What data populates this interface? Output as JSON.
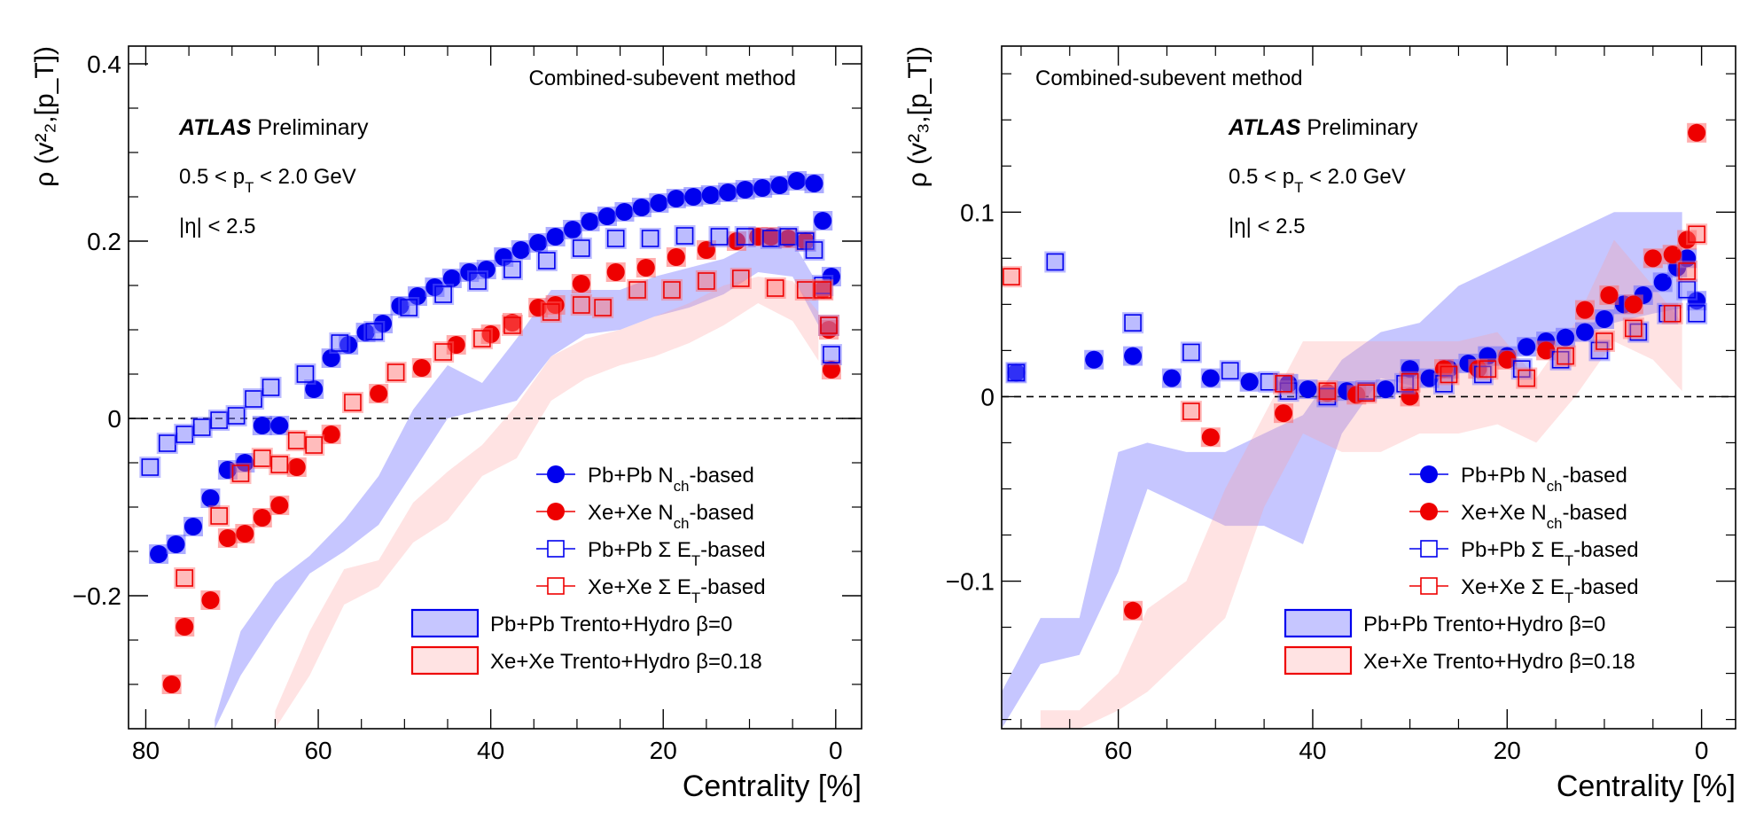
{
  "chart_data": [
    {
      "type": "scatter",
      "id": "v2",
      "ylabel": "ρ (v²₂,[p_T])",
      "xlabel": "Centrality [%]",
      "xlim": [
        82,
        -3
      ],
      "ylim": [
        -0.35,
        0.42
      ],
      "xticks": [
        80,
        60,
        40,
        20,
        0
      ],
      "yticks": [
        -0.2,
        0,
        0.2,
        0.4
      ],
      "ytick_labels": [
        "−0.2",
        "0",
        "0.2",
        "0.4"
      ],
      "zero_line": true,
      "annotations": {
        "method": "Combined-subevent method",
        "atlas": "ATLAS",
        "preliminary": "Preliminary",
        "pt_range": "0.5 < p",
        "pt_sub": "T",
        "pt_tail": " < 2.0 GeV",
        "eta": "|η| < 2.5"
      },
      "series": [
        {
          "name": "Pb+Pb N_ch-based",
          "label": "Pb+Pb N",
          "sub": "ch",
          "suffix": "-based",
          "marker": "filled-circle",
          "color": "#0000ee",
          "x": [
            78.5,
            76.5,
            74.5,
            72.5,
            70.5,
            68.5,
            66.5,
            64.5,
            60.5,
            58.5,
            56.5,
            54.5,
            52.5,
            50.5,
            48.5,
            46.5,
            44.5,
            42.5,
            40.5,
            38.5,
            36.5,
            34.5,
            32.5,
            30.5,
            28.5,
            26.5,
            24.5,
            22.5,
            20.5,
            18.5,
            16.5,
            14.5,
            12.5,
            10.5,
            8.5,
            6.5,
            4.5,
            2.5,
            1.5,
            0.5
          ],
          "y": [
            -0.153,
            -0.142,
            -0.122,
            -0.09,
            -0.058,
            -0.05,
            -0.008,
            -0.008,
            0.033,
            0.068,
            0.083,
            0.097,
            0.107,
            0.127,
            0.138,
            0.148,
            0.158,
            0.165,
            0.168,
            0.182,
            0.19,
            0.198,
            0.205,
            0.213,
            0.222,
            0.228,
            0.233,
            0.238,
            0.243,
            0.248,
            0.25,
            0.252,
            0.255,
            0.258,
            0.26,
            0.263,
            0.268,
            0.265,
            0.223,
            0.16
          ]
        },
        {
          "name": "Xe+Xe N_ch-based",
          "label": "Xe+Xe N",
          "sub": "ch",
          "suffix": "-based",
          "marker": "filled-circle",
          "color": "#ee0000",
          "x": [
            77,
            75.5,
            72.5,
            70.5,
            68.5,
            66.5,
            64.5,
            62.5,
            58.5,
            53,
            48,
            44,
            40,
            37.5,
            34.5,
            32.5,
            29.5,
            25.5,
            22,
            18.5,
            15,
            11.5,
            9,
            7.5,
            5.5,
            3.5,
            1.5,
            0.8,
            0.5
          ],
          "y": [
            -0.3,
            -0.235,
            -0.205,
            -0.135,
            -0.13,
            -0.112,
            -0.098,
            -0.055,
            -0.018,
            0.028,
            0.057,
            0.083,
            0.095,
            0.108,
            0.125,
            0.128,
            0.152,
            0.165,
            0.17,
            0.182,
            0.19,
            0.2,
            0.205,
            0.205,
            0.203,
            0.2,
            0.145,
            0.1,
            0.055
          ]
        },
        {
          "name": "Pb+Pb Σ E_T-based",
          "label": "Pb+Pb Σ E",
          "sub": "T",
          "suffix": "-based",
          "marker": "open-square",
          "color": "#0000ee",
          "x": [
            79.5,
            77.5,
            75.5,
            73.5,
            71.5,
            69.5,
            67.5,
            65.5,
            61.5,
            57.5,
            53.5,
            49.5,
            45.5,
            41.5,
            37.5,
            33.5,
            29.5,
            25.5,
            21.5,
            17.5,
            13.5,
            10.5,
            7.5,
            5.5,
            3.5,
            2.5,
            1.5,
            0.8,
            0.5
          ],
          "y": [
            -0.055,
            -0.028,
            -0.018,
            -0.01,
            -0.002,
            0.003,
            0.022,
            0.035,
            0.05,
            0.085,
            0.098,
            0.125,
            0.14,
            0.155,
            0.168,
            0.178,
            0.192,
            0.203,
            0.203,
            0.206,
            0.205,
            0.205,
            0.203,
            0.205,
            0.2,
            0.19,
            0.15,
            0.105,
            0.072
          ]
        },
        {
          "name": "Xe+Xe Σ E_T-based",
          "label": "Xe+Xe Σ E",
          "sub": "T",
          "suffix": "-based",
          "marker": "open-square",
          "color": "#ee0000",
          "x": [
            75.5,
            71.5,
            69,
            66.5,
            64.5,
            62.5,
            60.5,
            56,
            51,
            45.5,
            41,
            37.5,
            33,
            29.5,
            27,
            23,
            19,
            15,
            11,
            7,
            3.5,
            1.5,
            0.8
          ],
          "y": [
            -0.18,
            -0.11,
            -0.062,
            -0.045,
            -0.052,
            -0.025,
            -0.03,
            0.018,
            0.052,
            0.075,
            0.09,
            0.105,
            0.12,
            0.128,
            0.125,
            0.145,
            0.145,
            0.155,
            0.158,
            0.147,
            0.145,
            0.145,
            0.105
          ]
        }
      ],
      "bands": [
        {
          "name": "Pb+Pb Trento+Hydro β=0",
          "color": "#3333ff",
          "x": [
            72,
            69,
            65,
            61,
            57,
            53,
            49,
            45,
            41,
            37,
            33,
            29,
            25,
            21,
            17,
            13,
            9,
            5,
            2
          ],
          "low": [
            -0.35,
            -0.29,
            -0.23,
            -0.175,
            -0.15,
            -0.12,
            -0.06,
            0.0,
            0.01,
            0.02,
            0.07,
            0.095,
            0.1,
            0.115,
            0.125,
            0.14,
            0.165,
            0.16,
            0.105
          ],
          "high": [
            -0.34,
            -0.24,
            -0.185,
            -0.155,
            -0.115,
            -0.065,
            0.01,
            0.06,
            0.04,
            0.09,
            0.145,
            0.145,
            0.145,
            0.16,
            0.17,
            0.18,
            0.2,
            0.2,
            0.15
          ]
        },
        {
          "name": "Xe+Xe Trento+Hydro β=0.18",
          "color": "#ff9999",
          "x": [
            65,
            61,
            57,
            53,
            49,
            45,
            41,
            37,
            33,
            29,
            25,
            21,
            17,
            13,
            9,
            5,
            2
          ],
          "low": [
            -0.35,
            -0.29,
            -0.21,
            -0.19,
            -0.14,
            -0.115,
            -0.065,
            -0.045,
            0.02,
            0.045,
            0.06,
            0.07,
            0.085,
            0.105,
            0.13,
            0.11,
            0.065
          ],
          "high": [
            -0.33,
            -0.24,
            -0.17,
            -0.16,
            -0.095,
            -0.06,
            -0.03,
            0.015,
            0.07,
            0.09,
            0.1,
            0.115,
            0.13,
            0.15,
            0.16,
            0.155,
            0.12
          ]
        }
      ],
      "legend_location": "bottom-right"
    },
    {
      "type": "scatter",
      "id": "v3",
      "ylabel": "ρ (v²₃,[p_T])",
      "xlabel": "Centrality [%]",
      "xlim": [
        72,
        -3.5
      ],
      "ylim": [
        -0.18,
        0.19
      ],
      "xticks": [
        60,
        40,
        20,
        0
      ],
      "yticks": [
        -0.1,
        0,
        0.1
      ],
      "ytick_labels": [
        "−0.1",
        "0",
        "0.1"
      ],
      "zero_line": true,
      "annotations": {
        "method": "Combined-subevent method",
        "atlas": "ATLAS",
        "preliminary": "Preliminary",
        "pt_range": "0.5 < p",
        "pt_sub": "T",
        "pt_tail": " < 2.0 GeV",
        "eta": "|η| < 2.5"
      },
      "series": [
        {
          "name": "Pb+Pb N_ch-based",
          "label": "Pb+Pb N",
          "sub": "ch",
          "suffix": "-based",
          "marker": "filled-circle",
          "color": "#0000ee",
          "x": [
            70.5,
            62.5,
            58.5,
            54.5,
            50.5,
            46.5,
            42.5,
            40.5,
            36.5,
            32.5,
            30,
            28,
            26,
            24,
            22,
            20,
            18,
            16,
            14,
            12,
            10,
            8,
            6,
            4,
            2.5,
            1.5,
            0.5
          ],
          "y": [
            0.013,
            0.02,
            0.022,
            0.01,
            0.01,
            0.008,
            0.007,
            0.004,
            0.003,
            0.004,
            0.015,
            0.01,
            0.015,
            0.018,
            0.022,
            0.022,
            0.027,
            0.03,
            0.032,
            0.035,
            0.042,
            0.05,
            0.055,
            0.062,
            0.07,
            0.075,
            0.052
          ]
        },
        {
          "name": "Xe+Xe N_ch-based",
          "label": "Xe+Xe N",
          "sub": "ch",
          "suffix": "-based",
          "marker": "filled-circle",
          "color": "#ee0000",
          "x": [
            58.5,
            50.5,
            43,
            38.5,
            35.5,
            30,
            26.5,
            23,
            20,
            16,
            12,
            9.5,
            7,
            5,
            3,
            1.5,
            0.5
          ],
          "y": [
            -0.116,
            -0.022,
            -0.009,
            0.002,
            0.001,
            0.0,
            0.015,
            0.015,
            0.02,
            0.025,
            0.047,
            0.055,
            0.05,
            0.075,
            0.077,
            0.085,
            0.143
          ]
        },
        {
          "name": "Pb+Pb Σ E_T-based",
          "label": "Pb+Pb Σ E",
          "sub": "T",
          "suffix": "-based",
          "marker": "open-square",
          "color": "#0000ee",
          "x": [
            70.5,
            66.5,
            58.5,
            52.5,
            48.5,
            44.5,
            42.5,
            38.5,
            34.5,
            30.5,
            26.5,
            22.5,
            18.5,
            14.5,
            10.5,
            6.5,
            3.5,
            1.5,
            0.5
          ],
          "y": [
            0.013,
            0.073,
            0.04,
            0.024,
            0.014,
            0.008,
            0.003,
            0.0,
            0.003,
            0.007,
            0.007,
            0.012,
            0.015,
            0.02,
            0.025,
            0.035,
            0.045,
            0.058,
            0.045
          ]
        },
        {
          "name": "Xe+Xe Σ E_T-based",
          "label": "Xe+Xe Σ E",
          "sub": "T",
          "suffix": "-based",
          "marker": "open-square",
          "color": "#ee0000",
          "x": [
            71,
            52.5,
            43,
            38.5,
            34.5,
            30,
            26,
            22,
            18,
            14,
            10,
            7,
            3,
            1.5,
            0.5
          ],
          "y": [
            0.065,
            -0.008,
            0.007,
            0.003,
            0.002,
            0.008,
            0.012,
            0.015,
            0.01,
            0.022,
            0.03,
            0.037,
            0.045,
            0.068,
            0.088
          ]
        }
      ],
      "bands": [
        {
          "name": "Pb+Pb Trento+Hydro β=0",
          "color": "#3333ff",
          "x": [
            72,
            68,
            64,
            60,
            57,
            53,
            49,
            45,
            41,
            37,
            33,
            29,
            25,
            21,
            17,
            13,
            9,
            5,
            2
          ],
          "low": [
            -0.18,
            -0.145,
            -0.14,
            -0.095,
            -0.05,
            -0.06,
            -0.07,
            -0.07,
            -0.08,
            -0.02,
            0.01,
            0.005,
            0.013,
            0.02,
            0.025,
            0.03,
            0.04,
            0.045,
            0.048
          ],
          "high": [
            -0.16,
            -0.12,
            -0.12,
            -0.03,
            -0.025,
            -0.03,
            -0.03,
            -0.02,
            -0.01,
            0.02,
            0.035,
            0.04,
            0.06,
            0.07,
            0.08,
            0.09,
            0.1,
            0.1,
            0.1
          ]
        },
        {
          "name": "Xe+Xe Trento+Hydro β=0.18",
          "color": "#ff9999",
          "x": [
            68,
            64,
            60,
            57,
            53,
            49,
            45,
            41,
            37,
            33,
            29,
            25,
            21,
            17,
            13,
            9,
            5,
            2
          ],
          "low": [
            -0.18,
            -0.18,
            -0.17,
            -0.16,
            -0.14,
            -0.12,
            -0.06,
            -0.02,
            -0.03,
            -0.03,
            -0.02,
            -0.02,
            -0.015,
            -0.025,
            0.0,
            0.03,
            0.02,
            0.003
          ],
          "high": [
            -0.17,
            -0.17,
            -0.15,
            -0.115,
            -0.1,
            -0.05,
            -0.01,
            0.03,
            0.03,
            0.03,
            0.03,
            0.03,
            0.035,
            0.01,
            0.04,
            0.085,
            0.06,
            0.04
          ]
        }
      ],
      "legend_location": "bottom-right"
    }
  ]
}
